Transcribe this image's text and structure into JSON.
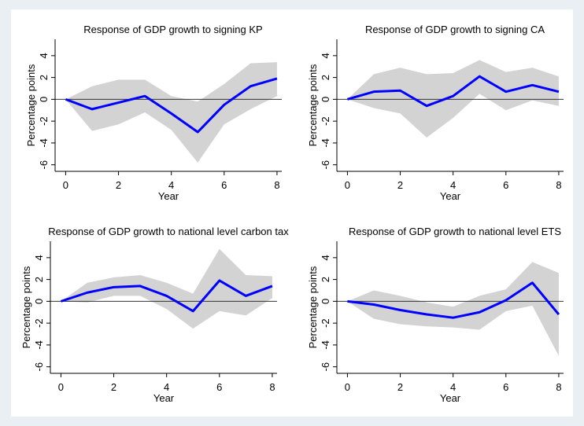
{
  "chart_data": [
    {
      "type": "line",
      "title": "Response of GDP growth to signing KP",
      "xlabel": "Year",
      "ylabel": "Percentage points",
      "x": [
        0,
        1,
        2,
        3,
        4,
        5,
        6,
        7,
        8
      ],
      "series": [
        {
          "color": "#0000ff",
          "values": [
            0,
            -0.9,
            -0.3,
            0.3,
            -1.3,
            -3.0,
            -0.5,
            1.2,
            1.9
          ]
        }
      ],
      "band": {
        "color": "#d3d3d3",
        "upper": [
          0,
          1.2,
          1.8,
          1.8,
          0.3,
          -0.2,
          1.4,
          3.3,
          3.4
        ],
        "lower": [
          0,
          -2.9,
          -2.3,
          -1.2,
          -2.8,
          -5.8,
          -2.3,
          -0.9,
          0.3
        ]
      },
      "xlim": [
        -0.4,
        8.3
      ],
      "ylim": [
        -6.6,
        5.5
      ],
      "xticks": [
        0,
        2,
        4,
        6,
        8
      ],
      "yticks": [
        -6,
        -4,
        -2,
        0,
        2,
        4
      ],
      "yline": 0
    },
    {
      "type": "line",
      "title": "Response of GDP growth to signing CA",
      "xlabel": "Year",
      "ylabel": "Percentage points",
      "x": [
        0,
        1,
        2,
        3,
        4,
        5,
        6,
        7,
        8
      ],
      "series": [
        {
          "color": "#0000ff",
          "values": [
            0,
            0.7,
            0.8,
            -0.6,
            0.3,
            2.1,
            0.7,
            1.3,
            0.7
          ]
        }
      ],
      "band": {
        "color": "#d3d3d3",
        "upper": [
          0,
          2.3,
          2.9,
          2.3,
          2.4,
          3.6,
          2.5,
          2.9,
          2.1
        ],
        "lower": [
          0,
          -0.8,
          -1.3,
          -3.5,
          -1.7,
          0.5,
          -1.0,
          -0.1,
          -0.6
        ]
      },
      "xlim": [
        -0.4,
        8.3
      ],
      "ylim": [
        -6.6,
        5.5
      ],
      "xticks": [
        0,
        2,
        4,
        6,
        8
      ],
      "yticks": [
        -6,
        -4,
        -2,
        0,
        2,
        4
      ],
      "yline": 0
    },
    {
      "type": "line",
      "title": "Response of GDP growth to national level carbon tax",
      "xlabel": "Year",
      "ylabel": "Percentage points",
      "x": [
        0,
        1,
        2,
        3,
        4,
        5,
        6,
        7,
        8
      ],
      "series": [
        {
          "color": "#0000ff",
          "values": [
            0,
            0.8,
            1.3,
            1.4,
            0.5,
            -0.9,
            1.9,
            0.5,
            1.4
          ]
        }
      ],
      "band": {
        "color": "#d3d3d3",
        "upper": [
          0,
          1.7,
          2.2,
          2.4,
          1.7,
          0.7,
          4.8,
          2.4,
          2.3
        ],
        "lower": [
          0,
          -0.1,
          0.5,
          0.5,
          -0.7,
          -2.5,
          -0.9,
          -1.3,
          0.3
        ]
      },
      "xlim": [
        -0.4,
        8.3
      ],
      "ylim": [
        -6.6,
        5.5
      ],
      "xticks": [
        0,
        2,
        4,
        6,
        8
      ],
      "yticks": [
        -6,
        -4,
        -2,
        0,
        2,
        4
      ],
      "yline": 0
    },
    {
      "type": "line",
      "title": "Response of GDP growth to national level ETS",
      "xlabel": "Year",
      "ylabel": "Percentage points",
      "x": [
        0,
        1,
        2,
        3,
        4,
        5,
        6,
        7,
        8
      ],
      "series": [
        {
          "color": "#0000ff",
          "values": [
            0,
            -0.3,
            -0.8,
            -1.2,
            -1.5,
            -1.0,
            0.1,
            1.7,
            -1.2
          ]
        }
      ],
      "band": {
        "color": "#d3d3d3",
        "upper": [
          0,
          1.0,
          0.5,
          -0.1,
          -0.5,
          0.5,
          1.1,
          3.6,
          2.6
        ],
        "lower": [
          0,
          -1.6,
          -2.1,
          -2.3,
          -2.4,
          -2.6,
          -0.9,
          -0.4,
          -5.0
        ]
      },
      "xlim": [
        -0.4,
        8.3
      ],
      "ylim": [
        -6.6,
        5.5
      ],
      "xticks": [
        0,
        2,
        4,
        6,
        8
      ],
      "yticks": [
        -6,
        -4,
        -2,
        0,
        2,
        4
      ],
      "yline": 0
    }
  ]
}
